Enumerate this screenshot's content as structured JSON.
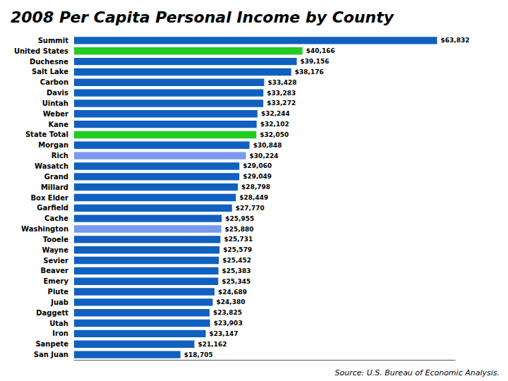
{
  "chart_data": {
    "type": "bar",
    "orientation": "horizontal",
    "title": "2008 Per Capita Personal Income by County",
    "annotations": [
      "Source: U.S. Bureau of Economic Analysis."
    ],
    "categories": [
      "Summit",
      "United States",
      "Duchesne",
      "Salt Lake",
      "Carbon",
      "Davis",
      "Uintah",
      "Weber",
      "Kane",
      "State Total",
      "Morgan",
      "Rich",
      "Wasatch",
      "Grand",
      "Millard",
      "Box Elder",
      "Garfield",
      "Cache",
      "Washington",
      "Tooele",
      "Wayne",
      "Sevier",
      "Beaver",
      "Emery",
      "Piute",
      "Juab",
      "Daggett",
      "Utah",
      "Iron",
      "Sanpete",
      "San Juan"
    ],
    "values": [
      63832,
      40166,
      39156,
      38176,
      33428,
      33283,
      33272,
      32244,
      32102,
      32050,
      30848,
      30224,
      29060,
      29049,
      28798,
      28449,
      27770,
      25955,
      25880,
      25731,
      25579,
      25452,
      25383,
      25345,
      24689,
      24380,
      23825,
      23903,
      23147,
      21162,
      18705
    ],
    "value_labels": [
      "$63,832",
      "$40,166",
      "$39,156",
      "$38,176",
      "$33,428",
      "$33,283",
      "$33,272",
      "$32,244",
      "$32,102",
      "$32,050",
      "$30,848",
      "$30,224",
      "$29,060",
      "$29,049",
      "$28,798",
      "$28,449",
      "$27,770",
      "$25,955",
      "$25,880",
      "$25,731",
      "$25,579",
      "$25,452",
      "$25,383",
      "$25,345",
      "$24,689",
      "$24,380",
      "$23,825",
      "$23,903",
      "$23,147",
      "$21,162",
      "$18,705"
    ],
    "colors": [
      "#1060C0",
      "#22CC22",
      "#1060C0",
      "#1060C0",
      "#1060C0",
      "#1060C0",
      "#1060C0",
      "#1060C0",
      "#1060C0",
      "#22CC22",
      "#1060C0",
      "#7799EE",
      "#1060C0",
      "#1060C0",
      "#1060C0",
      "#1060C0",
      "#1060C0",
      "#1060C0",
      "#7799EE",
      "#1060C0",
      "#1060C0",
      "#1060C0",
      "#1060C0",
      "#1060C0",
      "#1060C0",
      "#1060C0",
      "#1060C0",
      "#1060C0",
      "#1060C0",
      "#1060C0",
      "#1060C0"
    ],
    "xlim": [
      0,
      67000
    ],
    "data_labels": true,
    "tick_labels": "y",
    "grid": false
  }
}
